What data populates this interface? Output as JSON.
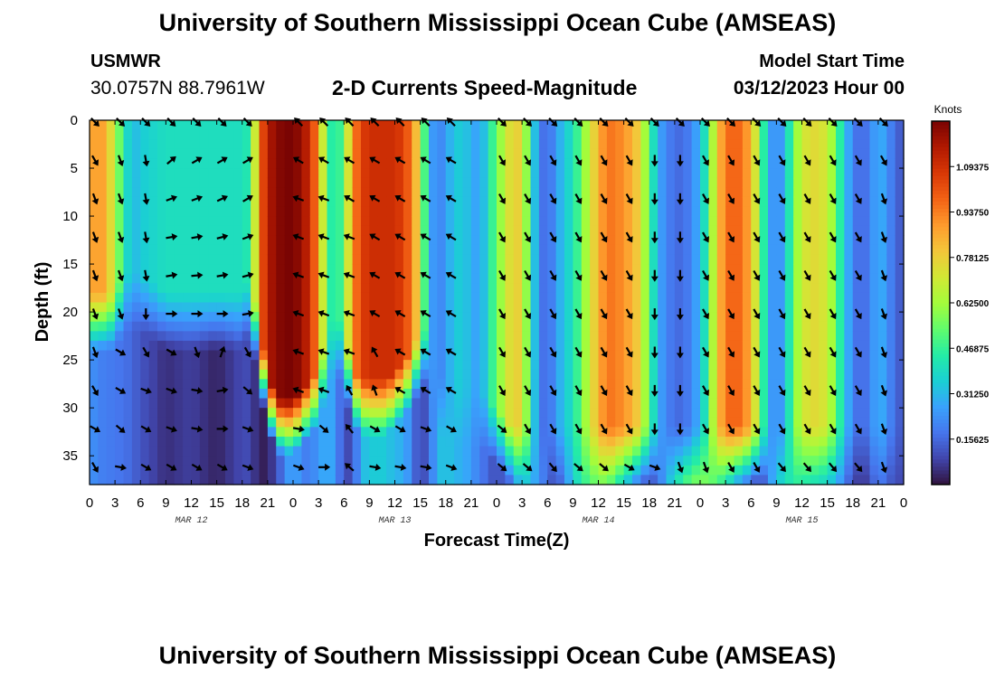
{
  "header": {
    "title": "University of Southern Mississippi Ocean Cube (AMSEAS)",
    "station_name": "USMWR",
    "station_coords": "30.0757N  88.7961W",
    "subtitle": "2-D Currents Speed-Magnitude",
    "model_start_label": "Model Start Time",
    "model_start_value": "03/12/2023 Hour 00"
  },
  "footer": {
    "title": "University of Southern Mississippi Ocean Cube (AMSEAS)"
  },
  "colors": {
    "colormap": [
      "#30123b",
      "#4145ab",
      "#4675ed",
      "#39a2fc",
      "#1bcfd4",
      "#24eca6",
      "#61fc6c",
      "#a4fc3b",
      "#d1e834",
      "#f3c63a",
      "#fe9b2d",
      "#f36315",
      "#d93806",
      "#b11901",
      "#7a0403"
    ]
  },
  "chart_data": {
    "type": "heatmap",
    "title": "2-D Currents Speed-Magnitude",
    "xlabel": "Forecast Time(Z)",
    "ylabel": "Depth (ft)",
    "colorbar_label": "Knots",
    "ylim": [
      0,
      38
    ],
    "xlim_hours": [
      0,
      96
    ],
    "y_ticks": [
      "0",
      "5",
      "10",
      "15",
      "20",
      "25",
      "30",
      "35"
    ],
    "x_tick_labels": [
      "0",
      "3",
      "6",
      "9",
      "12",
      "15",
      "18",
      "21",
      "0",
      "3",
      "6",
      "9",
      "12",
      "15",
      "18",
      "21",
      "0",
      "3",
      "6",
      "9",
      "12",
      "15",
      "18",
      "21",
      "0",
      "3",
      "6",
      "9",
      "12",
      "15",
      "18",
      "21",
      "0"
    ],
    "day_labels": [
      "MAR 12",
      "MAR 13",
      "MAR 14",
      "MAR 15"
    ],
    "colorbar_range": [
      0,
      1.25
    ],
    "colorbar_ticks": [
      "0.15625",
      "0.31250",
      "0.46875",
      "0.62500",
      "0.78125",
      "0.93750",
      "1.09375"
    ],
    "speed_profile": {
      "hours": [
        0,
        1,
        2,
        3,
        4,
        5,
        6,
        9,
        12,
        15,
        18,
        19,
        20,
        21,
        22,
        23,
        24,
        25,
        26,
        27,
        28,
        29,
        30,
        31,
        32,
        33,
        34,
        35,
        36,
        37,
        38,
        39,
        40,
        41,
        42,
        43,
        44,
        46,
        48,
        50,
        51,
        52,
        53,
        54,
        55,
        56,
        57,
        58,
        60,
        61,
        62,
        63,
        64,
        65,
        66,
        67,
        68,
        70,
        72,
        73,
        74,
        75,
        76,
        77,
        78,
        79,
        80,
        81,
        82,
        83,
        84,
        85,
        86,
        87,
        88,
        89,
        90,
        91,
        92,
        93,
        94,
        95,
        96
      ],
      "surface_kn": [
        0.85,
        0.9,
        0.85,
        0.65,
        0.45,
        0.3,
        0.35,
        0.4,
        0.4,
        0.4,
        0.4,
        0.45,
        0.95,
        1.15,
        1.22,
        1.25,
        1.25,
        1.2,
        1.1,
        0.9,
        0.5,
        0.4,
        0.55,
        0.9,
        1.05,
        1.1,
        1.1,
        1.1,
        1.1,
        1.05,
        0.95,
        0.7,
        0.3,
        0.2,
        0.25,
        0.35,
        0.35,
        0.25,
        0.55,
        0.8,
        0.75,
        0.45,
        0.2,
        0.15,
        0.25,
        0.35,
        0.4,
        0.55,
        0.85,
        0.95,
        0.95,
        0.9,
        0.85,
        0.75,
        0.5,
        0.3,
        0.2,
        0.15,
        0.3,
        0.5,
        0.8,
        0.95,
        1.0,
        0.95,
        0.85,
        0.6,
        0.3,
        0.2,
        0.3,
        0.55,
        0.7,
        0.75,
        0.75,
        0.7,
        0.55,
        0.35,
        0.2,
        0.15,
        0.2,
        0.3,
        0.25,
        0.15,
        0.12
      ],
      "deep_kn": [
        0.25,
        0.2,
        0.2,
        0.18,
        0.18,
        0.15,
        0.12,
        0.05,
        0.08,
        0.03,
        0.1,
        0.1,
        0.02,
        0.03,
        0.1,
        0.2,
        0.3,
        0.2,
        0.2,
        0.25,
        0.3,
        0.25,
        0.1,
        0.1,
        0.3,
        0.35,
        0.35,
        0.35,
        0.3,
        0.3,
        0.2,
        0.08,
        0.15,
        0.3,
        0.35,
        0.3,
        0.3,
        0.2,
        0.1,
        0.2,
        0.35,
        0.3,
        0.25,
        0.15,
        0.1,
        0.2,
        0.35,
        0.45,
        0.55,
        0.55,
        0.45,
        0.35,
        0.25,
        0.15,
        0.1,
        0.15,
        0.3,
        0.5,
        0.6,
        0.55,
        0.5,
        0.4,
        0.3,
        0.2,
        0.15,
        0.05,
        0.2,
        0.35,
        0.4,
        0.45,
        0.45,
        0.4,
        0.4,
        0.35,
        0.3,
        0.2,
        0.1,
        0.05,
        0.1,
        0.2,
        0.15,
        0.1,
        0.1
      ],
      "cutoff_ft": [
        22,
        22,
        22,
        22,
        20,
        20,
        20,
        22,
        22,
        22,
        22,
        20,
        26,
        30,
        33,
        33,
        33,
        32,
        31,
        30,
        26,
        24,
        26,
        30,
        31,
        31,
        31,
        31,
        30,
        29,
        28,
        26,
        26,
        30,
        32,
        32,
        32,
        32,
        34,
        36,
        36,
        36,
        36,
        36,
        36,
        36,
        36,
        36,
        36,
        36,
        36,
        36,
        36,
        36,
        36,
        36,
        36,
        36,
        36,
        36,
        36,
        36,
        36,
        36,
        36,
        36,
        36,
        36,
        36,
        36,
        36,
        36,
        36,
        36,
        36,
        36,
        36,
        36,
        36,
        36,
        36,
        36,
        36
      ]
    },
    "vector_depths_ft": [
      0,
      4,
      8,
      12,
      16,
      20,
      24,
      28,
      32,
      36
    ],
    "vector_hours": [
      0,
      3,
      6,
      9,
      12,
      15,
      18,
      24,
      27,
      30,
      33,
      36,
      39,
      42,
      48,
      51,
      54,
      57,
      60,
      63,
      66,
      69,
      72,
      75,
      78,
      81,
      84,
      87,
      90,
      93
    ],
    "vector_direction_deg": [
      [
        135,
        135,
        135,
        135,
        135,
        135,
        135,
        315,
        315,
        315,
        315,
        315,
        315,
        315,
        135,
        135,
        135,
        135,
        135,
        135,
        135,
        135,
        135,
        135,
        135,
        135,
        135,
        135,
        135,
        135
      ],
      [
        150,
        160,
        170,
        50,
        60,
        60,
        60,
        300,
        300,
        300,
        300,
        300,
        300,
        300,
        150,
        150,
        150,
        150,
        150,
        150,
        180,
        180,
        150,
        150,
        150,
        150,
        150,
        150,
        150,
        150
      ],
      [
        160,
        160,
        170,
        70,
        70,
        65,
        60,
        290,
        290,
        300,
        300,
        300,
        300,
        300,
        150,
        150,
        150,
        150,
        150,
        150,
        180,
        180,
        150,
        150,
        150,
        150,
        150,
        150,
        150,
        160
      ],
      [
        160,
        160,
        170,
        80,
        80,
        75,
        70,
        290,
        290,
        290,
        300,
        300,
        300,
        300,
        150,
        150,
        150,
        150,
        150,
        150,
        180,
        180,
        150,
        150,
        150,
        150,
        150,
        150,
        150,
        160
      ],
      [
        160,
        160,
        170,
        80,
        85,
        80,
        75,
        290,
        290,
        290,
        300,
        300,
        300,
        300,
        150,
        150,
        150,
        150,
        150,
        150,
        180,
        180,
        150,
        150,
        150,
        150,
        150,
        150,
        150,
        160
      ],
      [
        160,
        160,
        180,
        90,
        90,
        90,
        80,
        290,
        290,
        290,
        300,
        300,
        300,
        300,
        150,
        150,
        150,
        150,
        150,
        150,
        180,
        180,
        150,
        150,
        150,
        150,
        150,
        150,
        150,
        160
      ],
      [
        160,
        120,
        150,
        120,
        160,
        20,
        150,
        290,
        290,
        290,
        330,
        300,
        300,
        300,
        150,
        150,
        150,
        150,
        150,
        150,
        180,
        180,
        150,
        150,
        150,
        150,
        150,
        150,
        150,
        160
      ],
      [
        150,
        120,
        110,
        110,
        100,
        80,
        130,
        290,
        290,
        330,
        340,
        300,
        300,
        300,
        150,
        150,
        150,
        150,
        150,
        150,
        180,
        180,
        150,
        150,
        150,
        150,
        150,
        150,
        150,
        160
      ],
      [
        120,
        130,
        120,
        110,
        100,
        90,
        110,
        100,
        130,
        320,
        120,
        120,
        110,
        120,
        130,
        150,
        150,
        150,
        150,
        150,
        180,
        180,
        150,
        150,
        150,
        150,
        150,
        150,
        150,
        160
      ],
      [
        150,
        100,
        120,
        120,
        120,
        120,
        110,
        110,
        90,
        310,
        100,
        100,
        100,
        110,
        130,
        130,
        140,
        130,
        130,
        120,
        110,
        160,
        160,
        150,
        150,
        140,
        140,
        140,
        140,
        160
      ]
    ]
  }
}
